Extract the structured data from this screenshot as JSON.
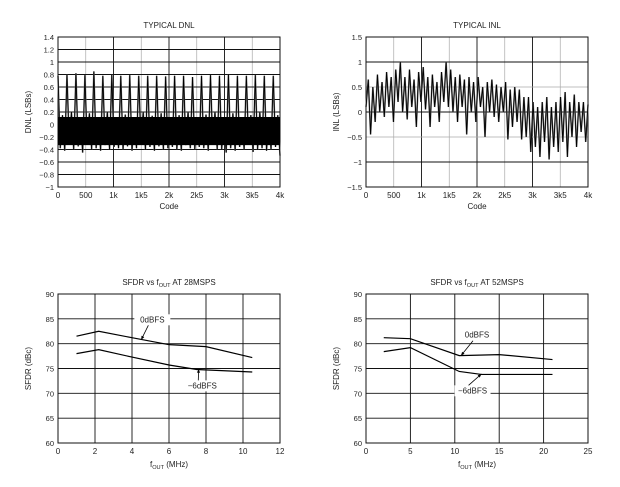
{
  "chart_data": [
    {
      "type": "line",
      "title": "TYPICAL DNL",
      "xlabel": "Code",
      "ylabel": "DNL (LSBs)",
      "xlim": [
        0,
        4000
      ],
      "ylim": [
        -1,
        1.4
      ],
      "xticks": [
        0,
        500,
        1000,
        1500,
        2000,
        2500,
        3000,
        3500,
        4000
      ],
      "xtick_labels": [
        "0",
        "500",
        "1k",
        "1k5",
        "2k",
        "2k5",
        "3k",
        "3k5",
        "4k"
      ],
      "yticks": [
        -1,
        -0.8,
        -0.6,
        -0.4,
        -0.2,
        0,
        0.2,
        0.4,
        0.6,
        0.8,
        1,
        1.2,
        1.4
      ],
      "ytick_labels": [
        "−1",
        "−0.8",
        "−0.6",
        "−0.4",
        "−0.2",
        "0",
        "0.2",
        "0.4",
        "0.6",
        "0.8",
        "1",
        "1.2",
        "1.4"
      ],
      "grid": true,
      "series": [
        {
          "name": "DNL",
          "x_range": [
            0,
            4000
          ],
          "values": [
            0.78,
            -0.38,
            0.15,
            -0.42,
            0.8,
            -0.3,
            0.2,
            -0.4,
            0.82,
            -0.35,
            0.1,
            -0.45,
            0.79,
            -0.3,
            0.18,
            -0.4,
            0.85,
            -0.38,
            0.12,
            -0.42,
            0.78,
            -0.33,
            0.2,
            -0.4,
            0.8,
            -0.36,
            0.1,
            -0.38,
            0.78,
            -0.4,
            0.16,
            -0.35,
            0.79,
            -0.42,
            0.12,
            -0.38,
            0.78,
            -0.3,
            0.2,
            -0.4,
            0.78,
            -0.36,
            0.14,
            -0.42,
            0.78,
            -0.35,
            0.18,
            -0.4,
            0.77,
            -0.38,
            0.1,
            -0.36,
            0.78,
            -0.4,
            0.15,
            -0.42,
            0.78,
            -0.33,
            0.2,
            -0.38,
            0.76,
            -0.4,
            0.12,
            -0.36,
            0.78,
            -0.38,
            0.16,
            -0.42,
            0.79,
            -0.3,
            0.2,
            -0.4,
            0.78,
            -0.4,
            0.1,
            -0.45,
            0.8,
            -0.38,
            0.18,
            -0.42,
            0.78,
            -0.36,
            0.12,
            -0.4,
            0.78,
            -0.3,
            0.15,
            -0.44,
            0.79,
            -0.4,
            0.2,
            -0.38,
            0.78,
            -0.42,
            0.12,
            -0.4,
            0.78,
            -0.36,
            0.15,
            -0.5
          ]
        }
      ]
    },
    {
      "type": "line",
      "title": "TYPICAL INL",
      "xlabel": "Code",
      "ylabel": "INL (LSBs)",
      "xlim": [
        0,
        4000
      ],
      "ylim": [
        -1.5,
        1.5
      ],
      "xticks": [
        0,
        500,
        1000,
        1500,
        2000,
        2500,
        3000,
        3500,
        4000
      ],
      "xtick_labels": [
        "0",
        "500",
        "1k",
        "1k5",
        "2k",
        "2k5",
        "3k",
        "3k5",
        "4k"
      ],
      "yticks": [
        -1.5,
        -1,
        -0.5,
        0,
        0.5,
        1,
        1.5
      ],
      "ytick_labels": [
        "−1.5",
        "−1",
        "−0.5",
        "0",
        "0.5",
        "1",
        "1.5"
      ],
      "grid": true,
      "series": [
        {
          "name": "INL",
          "x_range": [
            0,
            4000
          ],
          "values": [
            0.1,
            0.65,
            -0.45,
            0.5,
            -0.2,
            0.75,
            0.0,
            0.6,
            -0.1,
            0.8,
            0.1,
            0.7,
            -0.2,
            0.85,
            0.2,
            1.0,
            0.0,
            0.7,
            -0.15,
            0.85,
            0.1,
            0.65,
            -0.3,
            0.8,
            0.2,
            0.9,
            0.05,
            0.7,
            -0.3,
            0.75,
            0.1,
            0.6,
            -0.2,
            0.8,
            0.2,
            1.0,
            0.1,
            0.85,
            0.0,
            0.7,
            -0.2,
            0.75,
            0.1,
            0.65,
            -0.45,
            0.7,
            0.0,
            0.6,
            -0.2,
            0.7,
            0.1,
            0.5,
            -0.5,
            0.6,
            0.0,
            0.65,
            -0.1,
            0.55,
            -0.2,
            0.5,
            0.0,
            0.6,
            -0.55,
            0.45,
            -0.3,
            0.5,
            -0.2,
            0.45,
            -0.55,
            0.3,
            -0.5,
            0.3,
            -0.8,
            0.2,
            -0.7,
            0.1,
            -0.9,
            0.2,
            -0.6,
            0.3,
            -0.95,
            0.1,
            -0.7,
            0.2,
            -0.8,
            0.3,
            -0.6,
            0.4,
            -0.9,
            0.2,
            -0.5,
            0.35,
            -0.7,
            0.2,
            -0.4,
            0.2,
            -0.6,
            0.15
          ]
        }
      ]
    },
    {
      "type": "line",
      "title": "SFDR vs fOUT AT 28MSPS",
      "title_parts": {
        "pre": "SFDR vs f",
        "sub": "OUT",
        "post": " AT 28MSPS"
      },
      "xlabel": "fOUT (MHz)",
      "xlabel_parts": {
        "pre": "f",
        "sub": "OUT",
        "post": " (MHz)"
      },
      "ylabel": "SFDR (dBc)",
      "xlim": [
        0,
        12
      ],
      "ylim": [
        60,
        90
      ],
      "xticks": [
        0,
        2,
        4,
        6,
        8,
        10,
        12
      ],
      "xtick_labels": [
        "0",
        "2",
        "4",
        "6",
        "8",
        "10",
        "12"
      ],
      "yticks": [
        60,
        65,
        70,
        75,
        80,
        85,
        90
      ],
      "ytick_labels": [
        "60",
        "65",
        "70",
        "75",
        "80",
        "85",
        "90"
      ],
      "grid": true,
      "series": [
        {
          "name": "0dBFS",
          "x": [
            1,
            2.2,
            4,
            6,
            8,
            10.5
          ],
          "y": [
            81.5,
            82.5,
            81.2,
            79.8,
            79.4,
            77.2
          ]
        },
        {
          "name": "−6dBFS",
          "x": [
            1,
            2.2,
            4,
            6,
            7.5,
            10.5
          ],
          "y": [
            78,
            78.8,
            77.3,
            75.7,
            74.8,
            74.3
          ]
        }
      ],
      "annotations": [
        {
          "text": "0dBFS",
          "x": 5.1,
          "y": 84.3,
          "arrow_to": [
            4.5,
            80.8
          ]
        },
        {
          "text": "−6dBFS",
          "x": 7.8,
          "y": 71,
          "arrow_to": [
            7.6,
            74.9
          ]
        }
      ]
    },
    {
      "type": "line",
      "title": "SFDR vs fOUT AT 52MSPS",
      "title_parts": {
        "pre": "SFDR vs f",
        "sub": "OUT",
        "post": " AT 52MSPS"
      },
      "xlabel": "fOUT (MHz)",
      "xlabel_parts": {
        "pre": "f",
        "sub": "OUT",
        "post": " (MHz)"
      },
      "ylabel": "SFDR (dBc)",
      "xlim": [
        0,
        25
      ],
      "ylim": [
        60,
        90
      ],
      "xticks": [
        0,
        5,
        10,
        15,
        20,
        25
      ],
      "xtick_labels": [
        "0",
        "5",
        "10",
        "15",
        "20",
        "25"
      ],
      "yticks": [
        60,
        65,
        70,
        75,
        80,
        85,
        90
      ],
      "ytick_labels": [
        "60",
        "65",
        "70",
        "75",
        "80",
        "85",
        "90"
      ],
      "grid": true,
      "series": [
        {
          "name": "0dBFS",
          "x": [
            2,
            5,
            10.5,
            15,
            21
          ],
          "y": [
            81.2,
            81,
            77.6,
            77.8,
            76.8
          ]
        },
        {
          "name": "−6dBFS",
          "x": [
            2,
            5,
            10.5,
            13,
            21
          ],
          "y": [
            78.4,
            79.2,
            74.4,
            73.8,
            73.8
          ]
        }
      ],
      "annotations": [
        {
          "text": "0dBFS",
          "x": 12.5,
          "y": 81.2,
          "arrow_to": [
            10.7,
            77.6
          ]
        },
        {
          "text": "−6dBFS",
          "x": 12,
          "y": 70,
          "arrow_to": [
            13,
            73.9
          ]
        }
      ]
    }
  ]
}
